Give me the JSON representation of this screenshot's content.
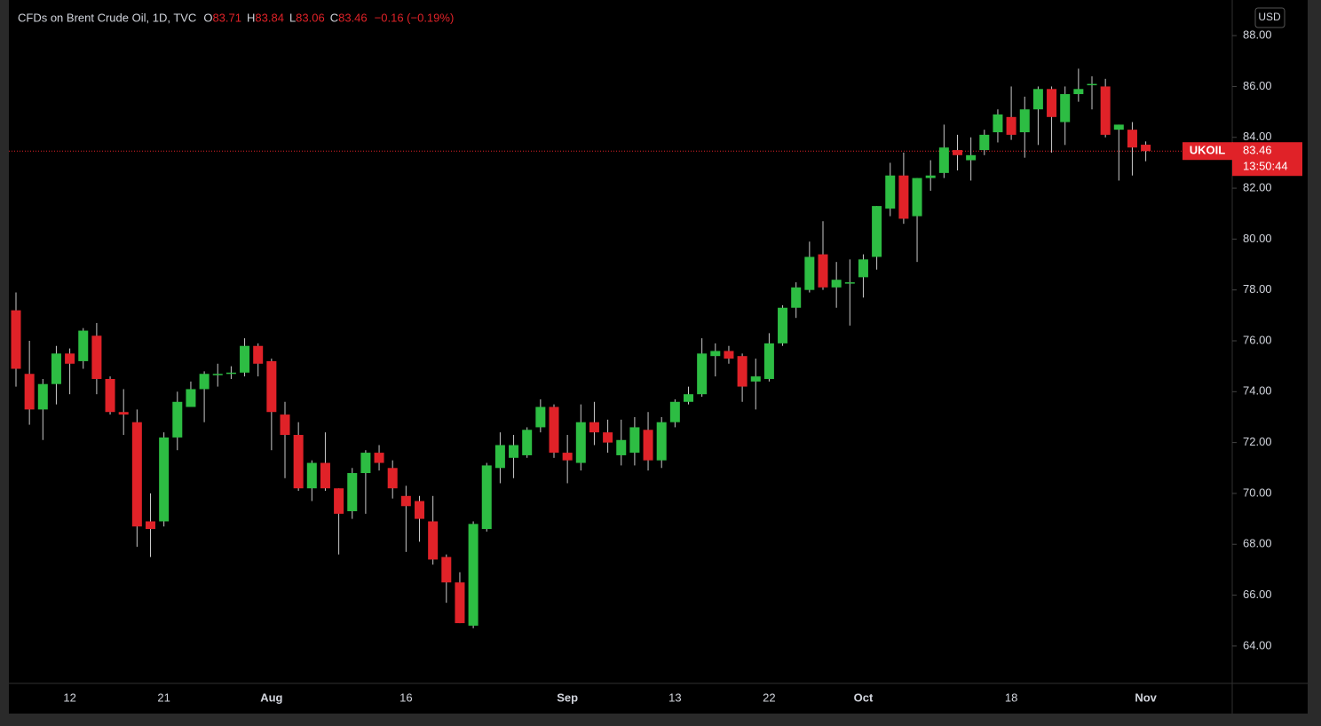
{
  "chart_data": {
    "type": "candlestick",
    "title": "CFDs on Brent Crude Oil, 1D, TVC",
    "ohlc_header": {
      "o_label": "O",
      "o_value": "83.71",
      "h_label": "H",
      "h_value": "83.84",
      "l_label": "L",
      "l_value": "83.06",
      "c_label": "C",
      "c_value": "83.46",
      "change": "−0.16 (−0.19%)"
    },
    "currency": "USD",
    "symbol": "UKOIL",
    "last_price": 83.46,
    "countdown": "13:50:44",
    "up_color": "#2dbd43",
    "down_color": "#e02228",
    "wick_color": "#c9c9c9",
    "grid": false,
    "categories": [
      null,
      null,
      null,
      null,
      "12",
      null,
      null,
      null,
      null,
      null,
      null,
      "21",
      null,
      null,
      null,
      null,
      null,
      null,
      null,
      "Aug",
      null,
      null,
      null,
      null,
      null,
      null,
      null,
      null,
      null,
      "16",
      null,
      null,
      null,
      null,
      null,
      null,
      null,
      null,
      null,
      null,
      null,
      "Sep",
      null,
      null,
      null,
      null,
      null,
      null,
      null,
      "13",
      null,
      null,
      null,
      null,
      null,
      null,
      "22",
      null,
      null,
      null,
      null,
      null,
      null,
      "Oct",
      null,
      null,
      null,
      null,
      null,
      null,
      null,
      null,
      null,
      null,
      "18",
      null,
      null,
      null,
      null,
      null,
      null,
      null,
      null,
      null,
      "Nov"
    ],
    "open": [
      77.2,
      74.7,
      73.3,
      74.3,
      75.5,
      75.2,
      76.2,
      74.5,
      73.2,
      72.8,
      68.9,
      68.9,
      72.2,
      73.4,
      74.1,
      74.7,
      74.7,
      74.75,
      75.8,
      75.2,
      73.1,
      72.3,
      70.2,
      71.2,
      70.2,
      69.3,
      70.8,
      71.6,
      71.0,
      69.9,
      69.7,
      68.9,
      67.5,
      66.5,
      64.8,
      68.6,
      71.0,
      71.4,
      71.5,
      72.6,
      73.4,
      71.6,
      71.2,
      72.8,
      72.4,
      71.5,
      71.6,
      72.5,
      71.3,
      72.8,
      73.6,
      73.9,
      75.4,
      75.6,
      75.4,
      74.4,
      74.5,
      75.9,
      77.3,
      78.0,
      79.4,
      78.1,
      78.3,
      78.5,
      79.3,
      81.2,
      82.5,
      80.9,
      82.4,
      82.6,
      83.5,
      83.1,
      83.5,
      84.2,
      84.8,
      84.2,
      85.1,
      85.9,
      84.6,
      85.7,
      86.1,
      86.0,
      84.3,
      84.3,
      83.71
    ],
    "high": [
      77.9,
      76.0,
      74.5,
      75.8,
      75.7,
      76.5,
      76.7,
      74.6,
      74.1,
      73.3,
      70.0,
      72.4,
      74.0,
      74.4,
      74.8,
      75.1,
      75.0,
      76.1,
      75.9,
      75.3,
      73.6,
      72.8,
      71.3,
      72.4,
      70.2,
      71.0,
      71.7,
      71.9,
      71.3,
      70.3,
      69.9,
      69.9,
      67.6,
      66.9,
      68.9,
      71.2,
      72.4,
      72.3,
      72.6,
      73.7,
      73.5,
      72.3,
      73.5,
      73.6,
      72.9,
      72.9,
      73.0,
      73.2,
      73.0,
      73.7,
      74.2,
      76.1,
      75.9,
      75.8,
      75.5,
      75.3,
      76.3,
      77.4,
      78.3,
      79.9,
      80.7,
      79.1,
      79.2,
      79.4,
      81.3,
      83.0,
      83.4,
      82.4,
      83.1,
      84.5,
      84.1,
      84.0,
      84.3,
      85.1,
      86.0,
      85.6,
      86.0,
      86.0,
      86.0,
      86.7,
      86.4,
      86.3,
      84.5,
      84.6,
      83.84
    ],
    "low": [
      74.2,
      72.7,
      72.1,
      73.5,
      73.9,
      74.9,
      73.9,
      73.1,
      72.3,
      67.9,
      67.5,
      68.7,
      71.7,
      73.4,
      72.8,
      74.2,
      74.5,
      74.6,
      74.6,
      71.7,
      70.6,
      70.1,
      69.7,
      70.1,
      67.6,
      69.0,
      69.2,
      70.9,
      69.8,
      67.7,
      68.1,
      67.2,
      65.7,
      64.9,
      64.7,
      68.5,
      70.4,
      70.6,
      71.4,
      72.4,
      71.4,
      70.4,
      70.9,
      71.9,
      71.6,
      71.1,
      71.1,
      70.9,
      71.0,
      72.6,
      73.5,
      73.8,
      74.6,
      75.1,
      73.6,
      73.3,
      74.4,
      75.8,
      76.9,
      77.9,
      78.0,
      77.3,
      76.6,
      77.7,
      78.8,
      80.9,
      80.6,
      79.1,
      81.9,
      82.4,
      82.7,
      82.3,
      83.3,
      83.8,
      83.9,
      83.2,
      83.7,
      83.4,
      83.7,
      85.4,
      85.1,
      84.0,
      82.3,
      82.5,
      83.06
    ],
    "close": [
      74.9,
      73.3,
      74.3,
      75.5,
      75.1,
      76.4,
      74.5,
      73.2,
      73.1,
      68.7,
      68.6,
      72.2,
      73.6,
      74.1,
      74.7,
      74.7,
      74.75,
      75.8,
      75.1,
      73.2,
      72.3,
      70.2,
      71.2,
      70.2,
      69.2,
      70.8,
      71.6,
      71.2,
      70.2,
      69.5,
      69.0,
      67.4,
      66.5,
      64.9,
      68.8,
      71.1,
      71.9,
      71.9,
      72.5,
      73.4,
      71.6,
      71.3,
      72.8,
      72.4,
      72.0,
      72.1,
      72.6,
      71.3,
      72.8,
      73.6,
      73.9,
      75.5,
      75.6,
      75.3,
      74.2,
      74.6,
      75.9,
      77.3,
      78.1,
      79.3,
      78.1,
      78.4,
      78.3,
      79.2,
      81.3,
      82.5,
      80.8,
      82.4,
      82.5,
      83.6,
      83.3,
      83.3,
      84.1,
      84.9,
      84.1,
      85.1,
      85.9,
      84.8,
      85.7,
      85.9,
      86.1,
      84.1,
      84.5,
      83.6,
      83.46
    ],
    "ylim": [
      62.53,
      89.4
    ],
    "yticks": [
      {
        "value": 64,
        "label": "64.00"
      },
      {
        "value": 66,
        "label": "66.00"
      },
      {
        "value": 68,
        "label": "68.00"
      },
      {
        "value": 70,
        "label": "70.00"
      },
      {
        "value": 72,
        "label": "72.00"
      },
      {
        "value": 74,
        "label": "74.00"
      },
      {
        "value": 76,
        "label": "76.00"
      },
      {
        "value": 78,
        "label": "78.00"
      },
      {
        "value": 80,
        "label": "80.00"
      },
      {
        "value": 82,
        "label": "82.00"
      },
      {
        "value": 84,
        "label": "84.00"
      },
      {
        "value": 86,
        "label": "86.00"
      },
      {
        "value": 88,
        "label": "88.00"
      }
    ]
  }
}
